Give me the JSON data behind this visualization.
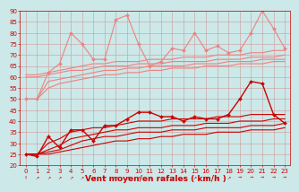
{
  "x": [
    0,
    1,
    2,
    3,
    4,
    5,
    6,
    7,
    8,
    9,
    10,
    11,
    12,
    13,
    14,
    15,
    16,
    17,
    18,
    19,
    20,
    21,
    22,
    23
  ],
  "series": [
    {
      "name": "rafales_max",
      "color": "#f08080",
      "linewidth": 0.8,
      "marker": "D",
      "markersize": 2.0,
      "values": [
        50,
        50,
        62,
        66,
        80,
        75,
        68,
        68,
        86,
        88,
        75,
        65,
        67,
        73,
        72,
        80,
        72,
        74,
        71,
        72,
        80,
        90,
        82,
        73
      ]
    },
    {
      "name": "rafales_q3",
      "color": "#f08080",
      "linewidth": 0.8,
      "marker": null,
      "markersize": 0,
      "values": [
        61,
        61,
        62,
        63,
        64,
        65,
        66,
        66,
        67,
        67,
        67,
        68,
        68,
        68,
        69,
        69,
        69,
        70,
        70,
        70,
        71,
        71,
        72,
        72
      ]
    },
    {
      "name": "rafales_median",
      "color": "#f08080",
      "linewidth": 0.8,
      "marker": null,
      "markersize": 0,
      "values": [
        60,
        60,
        61,
        62,
        63,
        63,
        64,
        65,
        65,
        65,
        66,
        66,
        66,
        67,
        67,
        67,
        67,
        68,
        68,
        68,
        69,
        69,
        69,
        70
      ]
    },
    {
      "name": "rafales_q1",
      "color": "#f08080",
      "linewidth": 0.8,
      "marker": null,
      "markersize": 0,
      "values": [
        50,
        50,
        58,
        59,
        60,
        61,
        62,
        63,
        63,
        64,
        64,
        65,
        65,
        65,
        65,
        66,
        66,
        66,
        67,
        67,
        67,
        68,
        68,
        68
      ]
    },
    {
      "name": "rafales_min",
      "color": "#f08080",
      "linewidth": 0.8,
      "marker": null,
      "markersize": 0,
      "values": [
        50,
        50,
        55,
        57,
        58,
        59,
        60,
        61,
        61,
        62,
        62,
        63,
        63,
        64,
        64,
        64,
        65,
        65,
        65,
        66,
        66,
        66,
        67,
        67
      ]
    },
    {
      "name": "vent_max",
      "color": "#cc0000",
      "linewidth": 1.0,
      "marker": "D",
      "markersize": 2.0,
      "values": [
        25,
        24,
        33,
        28,
        36,
        36,
        31,
        38,
        38,
        41,
        44,
        44,
        42,
        42,
        40,
        42,
        41,
        41,
        43,
        50,
        58,
        57,
        43,
        39
      ]
    },
    {
      "name": "vent_q3",
      "color": "#cc0000",
      "linewidth": 0.8,
      "marker": null,
      "markersize": 0,
      "values": [
        25,
        25,
        30,
        32,
        35,
        36,
        37,
        37,
        38,
        39,
        40,
        40,
        40,
        41,
        41,
        41,
        41,
        42,
        42,
        42,
        43,
        43,
        43,
        43
      ]
    },
    {
      "name": "vent_median",
      "color": "#cc0000",
      "linewidth": 0.8,
      "marker": null,
      "markersize": 0,
      "values": [
        25,
        25,
        27,
        29,
        32,
        33,
        34,
        35,
        36,
        36,
        37,
        37,
        37,
        38,
        38,
        38,
        39,
        39,
        39,
        40,
        40,
        40,
        41,
        41
      ]
    },
    {
      "name": "vent_q1",
      "color": "#cc0000",
      "linewidth": 0.8,
      "marker": null,
      "markersize": 0,
      "values": [
        25,
        25,
        26,
        27,
        29,
        31,
        32,
        33,
        33,
        34,
        35,
        35,
        35,
        36,
        36,
        36,
        37,
        37,
        37,
        37,
        38,
        38,
        38,
        39
      ]
    },
    {
      "name": "vent_min",
      "color": "#cc0000",
      "linewidth": 0.8,
      "marker": null,
      "markersize": 0,
      "values": [
        25,
        25,
        25,
        26,
        27,
        28,
        29,
        30,
        31,
        31,
        32,
        32,
        33,
        33,
        34,
        34,
        34,
        35,
        35,
        35,
        36,
        36,
        36,
        37
      ]
    }
  ],
  "xlabel": "Vent moyen/en rafales ( km/h )",
  "xlabel_fontsize": 6.5,
  "xlabel_color": "#cc0000",
  "ylim": [
    20,
    90
  ],
  "xlim": [
    -0.5,
    23.5
  ],
  "yticks": [
    20,
    25,
    30,
    35,
    40,
    45,
    50,
    55,
    60,
    65,
    70,
    75,
    80,
    85,
    90
  ],
  "xticks": [
    0,
    1,
    2,
    3,
    4,
    5,
    6,
    7,
    8,
    9,
    10,
    11,
    12,
    13,
    14,
    15,
    16,
    17,
    18,
    19,
    20,
    21,
    22,
    23
  ],
  "grid_color": "#cc9999",
  "bg_color": "#cce8e8",
  "tick_color": "#cc0000",
  "ytick_fontsize": 5.0,
  "xtick_fontsize": 5.0
}
